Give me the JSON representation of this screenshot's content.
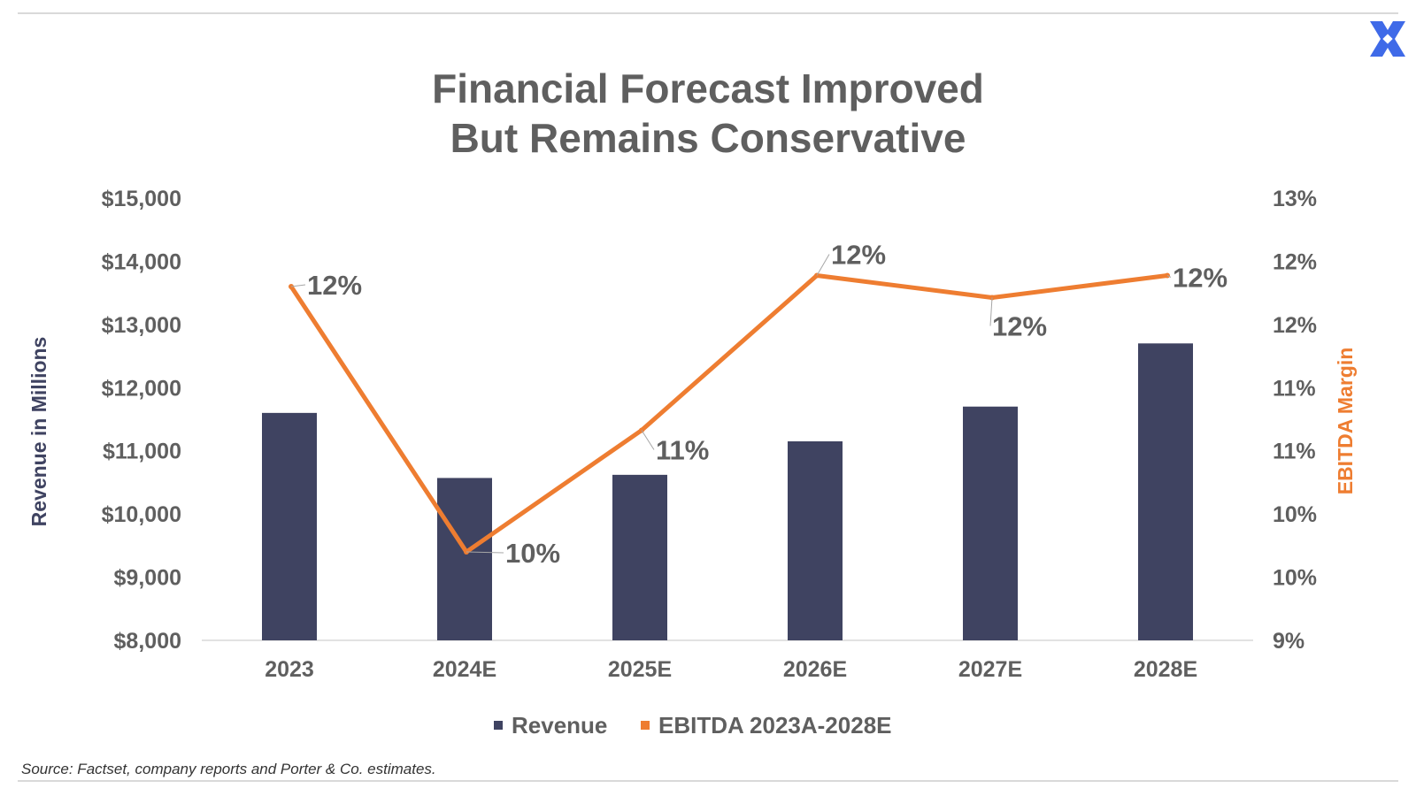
{
  "brand": {
    "logo_icon": "x-logo-icon",
    "logo_color": "#3f6ae8"
  },
  "title_lines": [
    "Financial Forecast Improved",
    "But Remains Conservative"
  ],
  "source": "Source: Factset, company reports and Porter & Co. estimates.",
  "colors": {
    "bar": "#3f4361",
    "line": "#ee7d31",
    "title": "#5f5f5f",
    "axis_text": "#5f5f5f"
  },
  "chart_data": {
    "type": "bar",
    "categories": [
      "2023",
      "2024E",
      "2025E",
      "2026E",
      "2027E",
      "2028E"
    ],
    "series": [
      {
        "name": "Revenue",
        "type": "bar",
        "axis": "left",
        "values": [
          11600,
          10570,
          10620,
          11150,
          11700,
          12700
        ]
      },
      {
        "name": "EBITDA 2023A-2028E",
        "type": "line",
        "axis": "right",
        "values": [
          12.2,
          9.8,
          10.9,
          12.3,
          12.1,
          12.3
        ],
        "data_labels": [
          "12%",
          "10%",
          "11%",
          "12%",
          "12%",
          "12%"
        ]
      }
    ],
    "y_left": {
      "label": "Revenue in Millions",
      "range": [
        8000,
        15000
      ],
      "ticks": [
        "$8,000",
        "$9,000",
        "$10,000",
        "$11,000",
        "$12,000",
        "$13,000",
        "$14,000",
        "$15,000"
      ]
    },
    "y_right": {
      "label": "EBITDA Margin",
      "range": [
        9,
        13
      ],
      "ticks": [
        "9%",
        "10%",
        "10%",
        "11%",
        "11%",
        "12%",
        "12%",
        "13%"
      ]
    },
    "legend_position": "bottom",
    "grid": false
  }
}
